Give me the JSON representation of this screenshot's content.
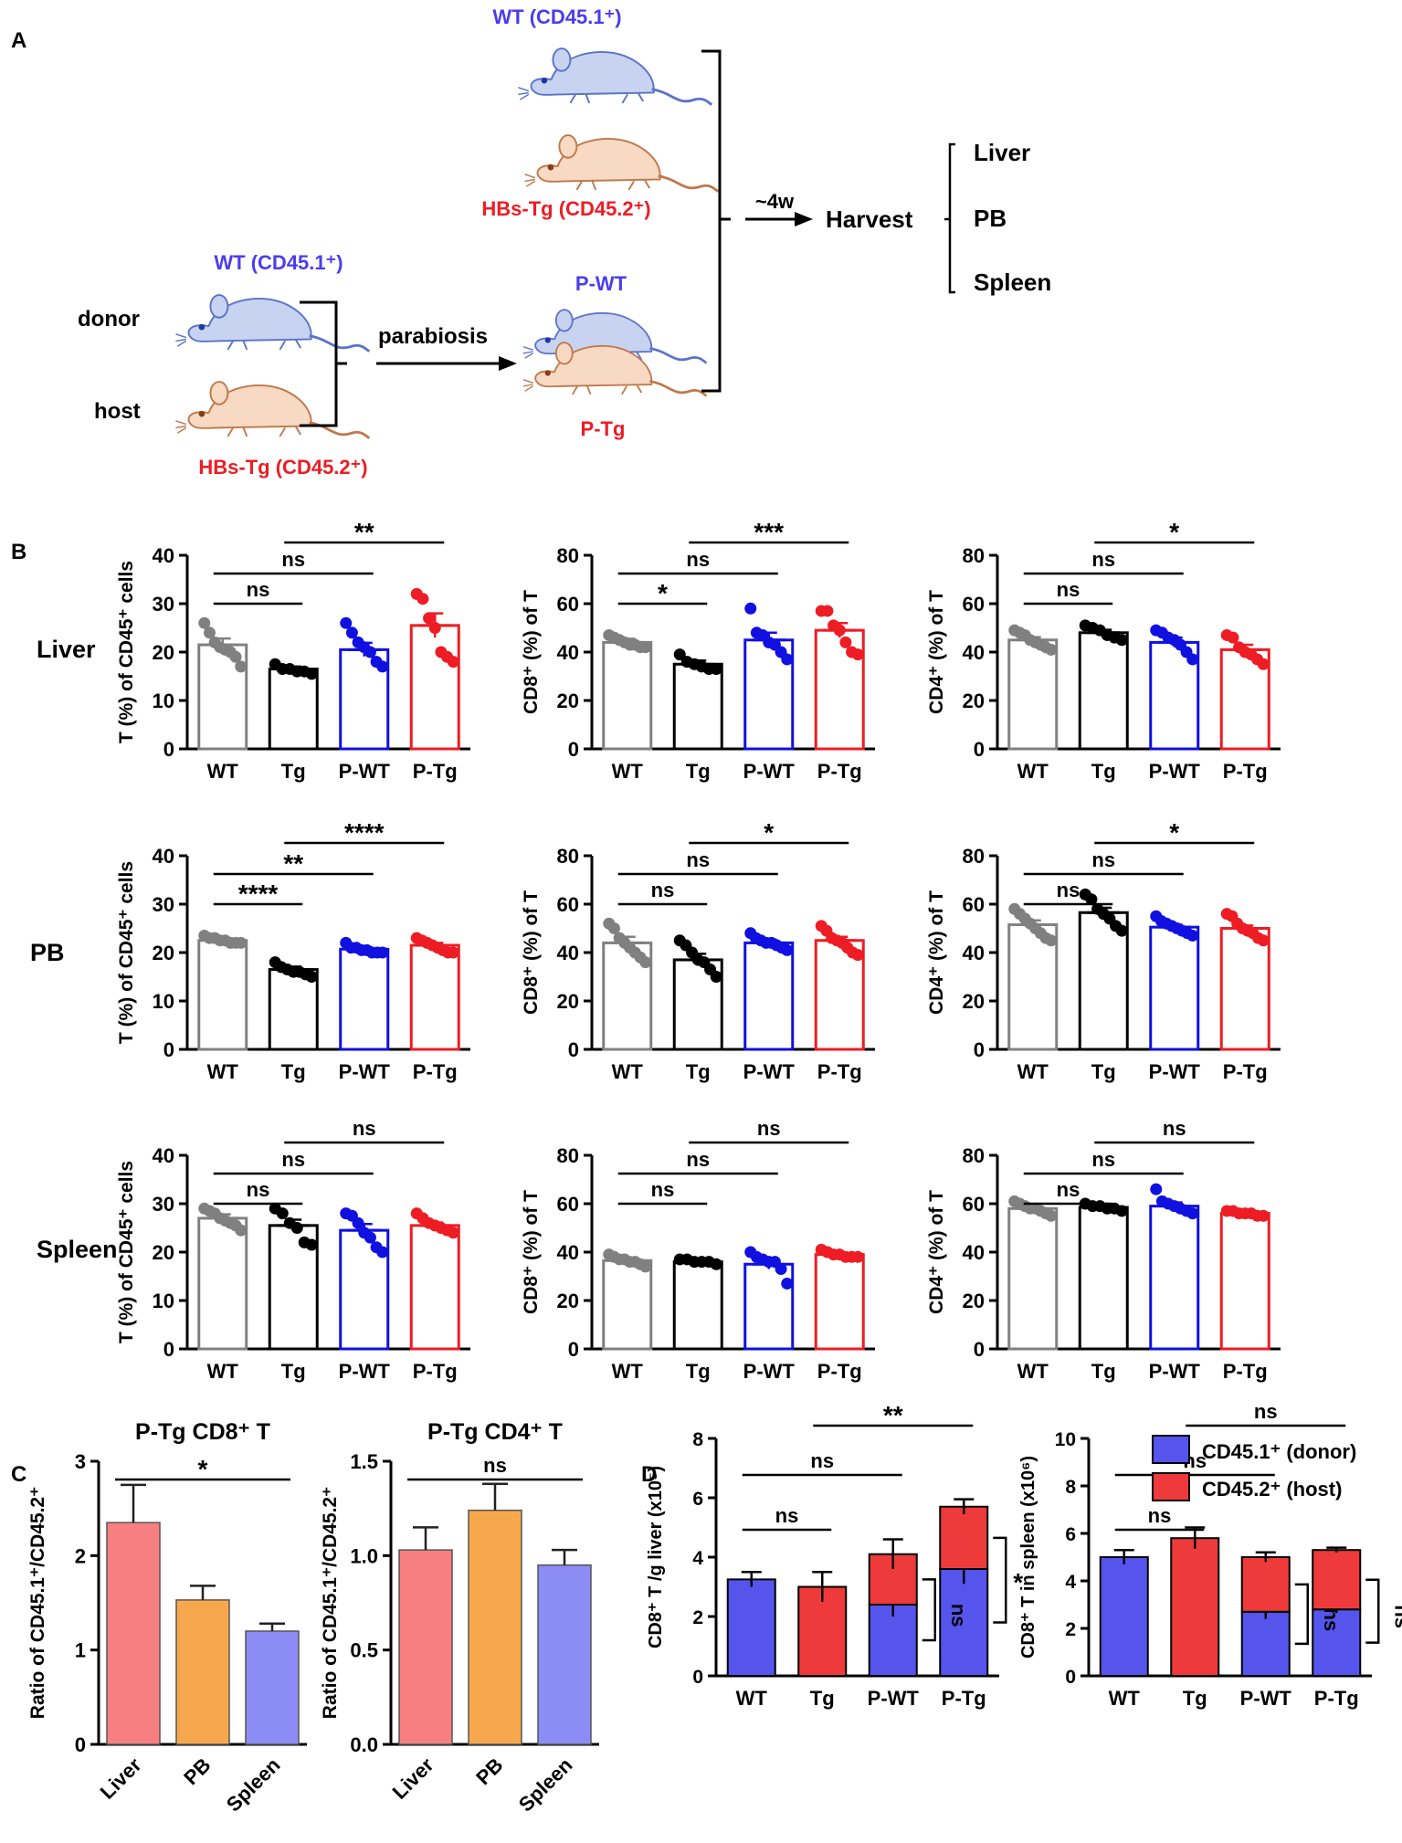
{
  "figure": {
    "panel_labels": {
      "a": "A",
      "b": "B",
      "c": "C",
      "d": "D"
    },
    "schematic": {
      "wt_top": "WT (CD45.1⁺)",
      "tg_top": "HBs-Tg (CD45.2⁺)",
      "wt_donor": "WT (CD45.1⁺)",
      "tg_host": "HBs-Tg (CD45.2⁺)",
      "donor": "donor",
      "host": "host",
      "parabiosis": "parabiosis",
      "p_wt": "P-WT",
      "p_tg": "P-Tg",
      "time": "~4w",
      "harvest": "Harvest",
      "tissues": [
        "Liver",
        "PB",
        "Spleen"
      ]
    },
    "row_labels": [
      "Liver",
      "PB",
      "Spleen"
    ],
    "colors": {
      "WT": "#808080",
      "Tg": "#000000",
      "P-WT": "#1010e0",
      "P-Tg": "#ee1c24",
      "donor": "#5555ee",
      "host": "#ee3a3a",
      "c_liver": "#f77f7f",
      "c_pb": "#f7a84d",
      "c_spleen": "#8c8cf5",
      "wt_text": "#4b3cf0",
      "tg_text": "#ee1c24"
    }
  },
  "chart_data": [
    {
      "id": "B-liver-T",
      "type": "bar",
      "categories": [
        "WT",
        "Tg",
        "P-WT",
        "P-Tg"
      ],
      "values": [
        21.5,
        16.5,
        20.5,
        25.5
      ],
      "errors": [
        1.3,
        0.5,
        1.4,
        2.5
      ],
      "points": [
        [
          26,
          24,
          22,
          21,
          20.5,
          20,
          19,
          17
        ],
        [
          17.5,
          16.5,
          16.5,
          16,
          16,
          15.5
        ],
        [
          26,
          24,
          22,
          21,
          20,
          18,
          17
        ],
        [
          32,
          31,
          27,
          25,
          20,
          19,
          18
        ]
      ],
      "ylabel": "T (%) of CD45⁺ cells",
      "ylim": [
        0,
        40
      ],
      "yticks": [
        0,
        10,
        20,
        30,
        40
      ],
      "brackets": [
        {
          "from": 0,
          "to": 1,
          "label": "ns"
        },
        {
          "from": 0,
          "to": 2,
          "label": "ns"
        },
        {
          "from": 1,
          "to": 3,
          "label": "**"
        }
      ]
    },
    {
      "id": "B-liver-CD8",
      "type": "bar",
      "categories": [
        "WT",
        "Tg",
        "P-WT",
        "P-Tg"
      ],
      "values": [
        44,
        35,
        45,
        49
      ],
      "errors": [
        1.5,
        1.5,
        3,
        3
      ],
      "points": [
        [
          47,
          46,
          45,
          44,
          43,
          43,
          42,
          42
        ],
        [
          39,
          36,
          35,
          34,
          33,
          33
        ],
        [
          58,
          48,
          47,
          44,
          43,
          40,
          37
        ],
        [
          57,
          57,
          51,
          49,
          44,
          40,
          39
        ]
      ],
      "ylabel": "CD8⁺ (%) of T",
      "ylim": [
        0,
        80
      ],
      "yticks": [
        0,
        20,
        40,
        60,
        80
      ],
      "brackets": [
        {
          "from": 0,
          "to": 1,
          "label": "*"
        },
        {
          "from": 0,
          "to": 2,
          "label": "ns"
        },
        {
          "from": 1,
          "to": 3,
          "label": "***"
        }
      ]
    },
    {
      "id": "B-liver-CD4",
      "type": "bar",
      "categories": [
        "WT",
        "Tg",
        "P-WT",
        "P-Tg"
      ],
      "values": [
        45,
        48,
        44,
        41
      ],
      "errors": [
        1.2,
        1.2,
        2,
        2
      ],
      "points": [
        [
          49,
          48,
          47,
          45,
          44,
          43,
          42,
          41
        ],
        [
          51,
          50,
          49,
          47,
          46,
          45
        ],
        [
          49,
          48,
          46,
          45,
          43,
          40,
          37
        ],
        [
          47,
          46,
          42,
          40,
          39,
          37,
          35
        ]
      ],
      "ylabel": "CD4⁺ (%) of T",
      "ylim": [
        0,
        80
      ],
      "yticks": [
        0,
        20,
        40,
        60,
        80
      ],
      "brackets": [
        {
          "from": 0,
          "to": 1,
          "label": "ns"
        },
        {
          "from": 0,
          "to": 2,
          "label": "ns"
        },
        {
          "from": 1,
          "to": 3,
          "label": "*"
        }
      ]
    },
    {
      "id": "B-pb-T",
      "type": "bar",
      "categories": [
        "WT",
        "Tg",
        "P-WT",
        "P-Tg"
      ],
      "values": [
        22.5,
        16.5,
        20.7,
        21.5
      ],
      "errors": [
        0.3,
        0.6,
        0.4,
        0.5
      ],
      "points": [
        [
          23.5,
          23,
          23,
          22.5,
          22.5,
          22,
          22,
          22
        ],
        [
          18,
          17,
          16.5,
          16,
          16,
          15.5,
          15
        ],
        [
          22,
          21,
          21,
          20.5,
          20.5,
          20,
          20,
          20
        ],
        [
          23,
          22.5,
          22,
          21.5,
          21,
          20.5,
          20,
          20
        ]
      ],
      "ylabel": "T (%) of CD45⁺ cells",
      "ylim": [
        0,
        40
      ],
      "yticks": [
        0,
        10,
        20,
        30,
        40
      ],
      "brackets": [
        {
          "from": 0,
          "to": 1,
          "label": "****"
        },
        {
          "from": 0,
          "to": 2,
          "label": "**"
        },
        {
          "from": 1,
          "to": 3,
          "label": "****"
        }
      ]
    },
    {
      "id": "B-pb-CD8",
      "type": "bar",
      "categories": [
        "WT",
        "Tg",
        "P-WT",
        "P-Tg"
      ],
      "values": [
        44,
        37,
        44,
        45
      ],
      "errors": [
        2.5,
        2.5,
        1.3,
        1.5
      ],
      "points": [
        [
          52,
          50,
          46,
          44,
          42,
          40,
          38,
          36
        ],
        [
          45,
          43,
          40,
          37,
          36,
          33,
          30
        ],
        [
          48,
          46,
          45,
          44,
          44,
          43,
          42,
          41
        ],
        [
          51,
          49,
          46,
          45,
          44,
          42,
          40,
          39
        ]
      ],
      "ylabel": "CD8⁺ (%) of T",
      "ylim": [
        0,
        80
      ],
      "yticks": [
        0,
        20,
        40,
        60,
        80
      ],
      "brackets": [
        {
          "from": 0,
          "to": 1,
          "label": "ns"
        },
        {
          "from": 0,
          "to": 2,
          "label": "ns"
        },
        {
          "from": 1,
          "to": 3,
          "label": "*"
        }
      ]
    },
    {
      "id": "B-pb-CD4",
      "type": "bar",
      "categories": [
        "WT",
        "Tg",
        "P-WT",
        "P-Tg"
      ],
      "values": [
        51.5,
        56.5,
        50.5,
        50
      ],
      "errors": [
        1.8,
        2,
        1,
        1.2
      ],
      "points": [
        [
          58,
          56,
          54,
          52,
          50,
          48,
          46,
          45
        ],
        [
          64,
          62,
          58,
          56,
          54,
          51,
          49
        ],
        [
          55,
          53,
          52,
          51,
          50,
          49,
          48,
          47
        ],
        [
          56,
          55,
          52,
          50,
          49,
          48,
          46,
          45
        ]
      ],
      "ylabel": "CD4⁺ (%) of T",
      "ylim": [
        0,
        80
      ],
      "yticks": [
        0,
        20,
        40,
        60,
        80
      ],
      "brackets": [
        {
          "from": 0,
          "to": 1,
          "label": "ns"
        },
        {
          "from": 0,
          "to": 2,
          "label": "ns"
        },
        {
          "from": 1,
          "to": 3,
          "label": "*"
        }
      ]
    },
    {
      "id": "B-spleen-T",
      "type": "bar",
      "categories": [
        "WT",
        "Tg",
        "P-WT",
        "P-Tg"
      ],
      "values": [
        27,
        25.5,
        24.5,
        25.5
      ],
      "errors": [
        0.8,
        1.2,
        1.3,
        0.6
      ],
      "points": [
        [
          29,
          28.5,
          28,
          27,
          26.5,
          26,
          25.5,
          24.5
        ],
        [
          29,
          28,
          26,
          25,
          22,
          21.5
        ],
        [
          28,
          27.5,
          26,
          24,
          23,
          21,
          20
        ],
        [
          28,
          27,
          26,
          25.5,
          25,
          24.5,
          24
        ]
      ],
      "ylabel": "T (%) of CD45⁺ cells",
      "ylim": [
        0,
        40
      ],
      "yticks": [
        0,
        10,
        20,
        30,
        40
      ],
      "brackets": [
        {
          "from": 0,
          "to": 1,
          "label": "ns"
        },
        {
          "from": 0,
          "to": 2,
          "label": "ns"
        },
        {
          "from": 1,
          "to": 3,
          "label": "ns"
        }
      ]
    },
    {
      "id": "B-spleen-CD8",
      "type": "bar",
      "categories": [
        "WT",
        "Tg",
        "P-WT",
        "P-Tg"
      ],
      "values": [
        36.5,
        36,
        35,
        39
      ],
      "errors": [
        1,
        0.5,
        2,
        0.5
      ],
      "points": [
        [
          39,
          38,
          37,
          37,
          36,
          36,
          35,
          34
        ],
        [
          37,
          37,
          36,
          36,
          36,
          35
        ],
        [
          40,
          38,
          37,
          36,
          36,
          33,
          27
        ],
        [
          41,
          40,
          39,
          39,
          38,
          38,
          38
        ]
      ],
      "ylabel": "CD8⁺ (%) of T",
      "ylim": [
        0,
        80
      ],
      "yticks": [
        0,
        20,
        40,
        60,
        80
      ],
      "brackets": [
        {
          "from": 0,
          "to": 1,
          "label": "ns"
        },
        {
          "from": 0,
          "to": 2,
          "label": "ns"
        },
        {
          "from": 1,
          "to": 3,
          "label": "ns"
        }
      ]
    },
    {
      "id": "B-spleen-CD4",
      "type": "bar",
      "categories": [
        "WT",
        "Tg",
        "P-WT",
        "P-Tg"
      ],
      "values": [
        58,
        58.5,
        59,
        56
      ],
      "errors": [
        1,
        0.5,
        1.5,
        0.3
      ],
      "points": [
        [
          61,
          60,
          59,
          58,
          58,
          57,
          56,
          55
        ],
        [
          60,
          59,
          59,
          58,
          58,
          57
        ],
        [
          66,
          61,
          60,
          59,
          58,
          57,
          56
        ],
        [
          57,
          57,
          56,
          56,
          56,
          55,
          55
        ]
      ],
      "ylabel": "CD4⁺ (%) of T",
      "ylim": [
        0,
        80
      ],
      "yticks": [
        0,
        20,
        40,
        60,
        80
      ],
      "brackets": [
        {
          "from": 0,
          "to": 1,
          "label": "ns"
        },
        {
          "from": 0,
          "to": 2,
          "label": "ns"
        },
        {
          "from": 1,
          "to": 3,
          "label": "ns"
        }
      ]
    },
    {
      "id": "C-cd8",
      "type": "bar",
      "title": "P-Tg CD8⁺ T",
      "categories": [
        "Liver",
        "PB",
        "Spleen"
      ],
      "values": [
        2.35,
        1.53,
        1.2
      ],
      "errors": [
        0.4,
        0.15,
        0.08
      ],
      "ylabel": "Ratio of CD45.1⁺/CD45.2⁺",
      "ylim": [
        0,
        3
      ],
      "yticks": [
        0,
        1,
        2,
        3
      ],
      "brackets": [
        {
          "from": 0,
          "to": 2,
          "label": "*"
        }
      ]
    },
    {
      "id": "C-cd4",
      "type": "bar",
      "title": "P-Tg CD4⁺ T",
      "categories": [
        "Liver",
        "PB",
        "Spleen"
      ],
      "values": [
        1.03,
        1.24,
        0.95
      ],
      "errors": [
        0.12,
        0.14,
        0.08
      ],
      "ylabel": "Ratio of CD45.1⁺/CD45.2⁺",
      "ylim": [
        0,
        1.5
      ],
      "yticks": [
        "0.0",
        "0.5",
        "1.0",
        "1.5"
      ],
      "brackets": [
        {
          "from": 0,
          "to": 2,
          "label": "ns"
        }
      ]
    },
    {
      "id": "D-liver",
      "type": "stacked-bar",
      "categories": [
        "WT",
        "Tg",
        "P-WT",
        "P-Tg"
      ],
      "ylabel": "CD8⁺ T /g liver (x10⁵)",
      "ylim": [
        0,
        8
      ],
      "yticks": [
        0,
        2,
        4,
        6,
        8
      ],
      "series": [
        {
          "name": "CD45.1⁺ (donor)",
          "values": [
            3.25,
            0,
            2.4,
            3.6
          ],
          "errors": [
            0.25,
            0,
            0.4,
            0.5
          ]
        },
        {
          "name": "CD45.2⁺ (host)",
          "values": [
            0,
            3,
            1.7,
            2.1
          ],
          "errors": [
            0,
            0.5,
            0.5,
            0.25
          ]
        }
      ],
      "brackets": [
        {
          "from": 0,
          "to": 1,
          "label": "ns"
        },
        {
          "from": 0,
          "to": 2,
          "label": "ns"
        },
        {
          "from": 1,
          "to": 3,
          "label": "**"
        }
      ],
      "side_labels": [
        "ns",
        "*"
      ]
    },
    {
      "id": "D-spleen",
      "type": "stacked-bar",
      "categories": [
        "WT",
        "Tg",
        "P-WT",
        "P-Tg"
      ],
      "ylabel": "CD8⁺ T in spleen (x10⁶)",
      "ylim": [
        0,
        10
      ],
      "yticks": [
        0,
        2,
        4,
        6,
        8,
        10
      ],
      "series": [
        {
          "name": "CD45.1⁺ (donor)",
          "values": [
            5,
            0,
            2.7,
            2.8
          ],
          "errors": [
            0.3,
            0,
            0.3,
            0.15
          ]
        },
        {
          "name": "CD45.2⁺ (host)",
          "values": [
            0,
            5.8,
            2.3,
            2.5
          ],
          "errors": [
            0,
            0.45,
            0.2,
            0.1
          ]
        }
      ],
      "brackets": [
        {
          "from": 0,
          "to": 1,
          "label": "ns"
        },
        {
          "from": 0,
          "to": 2,
          "label": "ns"
        },
        {
          "from": 1,
          "to": 3,
          "label": "ns"
        }
      ],
      "side_labels": [
        "ns",
        "ns"
      ]
    }
  ],
  "legend": [
    "CD45.1⁺ (donor)",
    "CD45.2⁺ (host)"
  ]
}
